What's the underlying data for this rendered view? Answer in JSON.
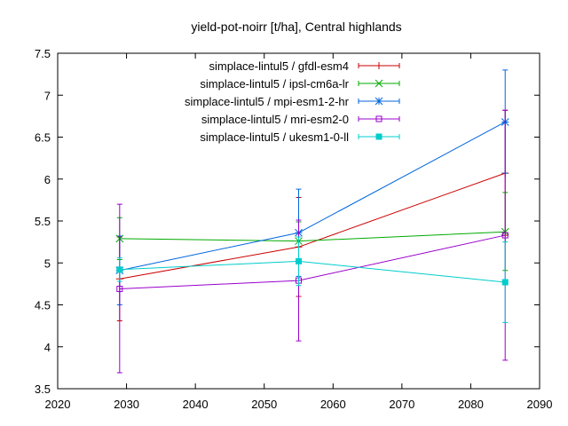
{
  "chart_data": {
    "type": "line",
    "title": "yield-pot-noirr [t/ha], Central highlands",
    "xlabel": "",
    "ylabel": "",
    "xlim": [
      2020,
      2090
    ],
    "ylim": [
      3.5,
      7.5
    ],
    "xticks": [
      2020,
      2030,
      2040,
      2050,
      2060,
      2070,
      2080,
      2090
    ],
    "yticks": [
      3.5,
      4,
      4.5,
      5,
      5.5,
      6,
      6.5,
      7,
      7.5
    ],
    "ytick_labels": [
      "3.5",
      "4",
      "4.5",
      "5",
      "5.5",
      "6",
      "6.5",
      "7",
      "7.5"
    ],
    "grid": false,
    "legend_position": "top-right",
    "series": [
      {
        "name": "simplace-lintul5 / gfdl-esm4",
        "color": "#cc0000",
        "marker": "plus",
        "points": [
          {
            "x": 2029,
            "y": 4.81,
            "err_low": 4.31,
            "err_high": 5.31
          },
          {
            "x": 2055,
            "y": 5.19,
            "err_low": 4.6,
            "err_high": 5.78
          },
          {
            "x": 2085,
            "y": 6.07,
            "err_low": 5.33,
            "err_high": 6.82
          }
        ]
      },
      {
        "name": "simplace-lintul5 / ipsl-cm6a-lr",
        "color": "#00aa00",
        "marker": "x",
        "points": [
          {
            "x": 2029,
            "y": 5.29,
            "err_low": 5.04,
            "err_high": 5.54
          },
          {
            "x": 2055,
            "y": 5.26,
            "err_low": 5.03,
            "err_high": 5.49
          },
          {
            "x": 2085,
            "y": 5.37,
            "err_low": 4.91,
            "err_high": 5.84
          }
        ]
      },
      {
        "name": "simplace-lintul5 / mpi-esm1-2-hr",
        "color": "#0066dd",
        "marker": "star",
        "points": [
          {
            "x": 2029,
            "y": 4.91,
            "err_low": 4.5,
            "err_high": 5.32
          },
          {
            "x": 2055,
            "y": 5.36,
            "err_low": 4.84,
            "err_high": 5.88
          },
          {
            "x": 2085,
            "y": 6.68,
            "err_low": 6.07,
            "err_high": 7.3
          }
        ]
      },
      {
        "name": "simplace-lintul5 / mri-esm2-0",
        "color": "#9900cc",
        "marker": "square-open",
        "points": [
          {
            "x": 2029,
            "y": 4.69,
            "err_low": 3.69,
            "err_high": 5.7
          },
          {
            "x": 2055,
            "y": 4.79,
            "err_low": 4.07,
            "err_high": 5.51
          },
          {
            "x": 2085,
            "y": 5.33,
            "err_low": 3.84,
            "err_high": 6.82
          }
        ]
      },
      {
        "name": "simplace-lintul5 / ukesm1-0-ll",
        "color": "#00cccc",
        "marker": "square-filled",
        "points": [
          {
            "x": 2029,
            "y": 4.92,
            "err_low": 4.78,
            "err_high": 5.06
          },
          {
            "x": 2055,
            "y": 5.02,
            "err_low": 4.73,
            "err_high": 5.31
          },
          {
            "x": 2085,
            "y": 4.77,
            "err_low": 4.29,
            "err_high": 5.25
          }
        ]
      }
    ]
  }
}
